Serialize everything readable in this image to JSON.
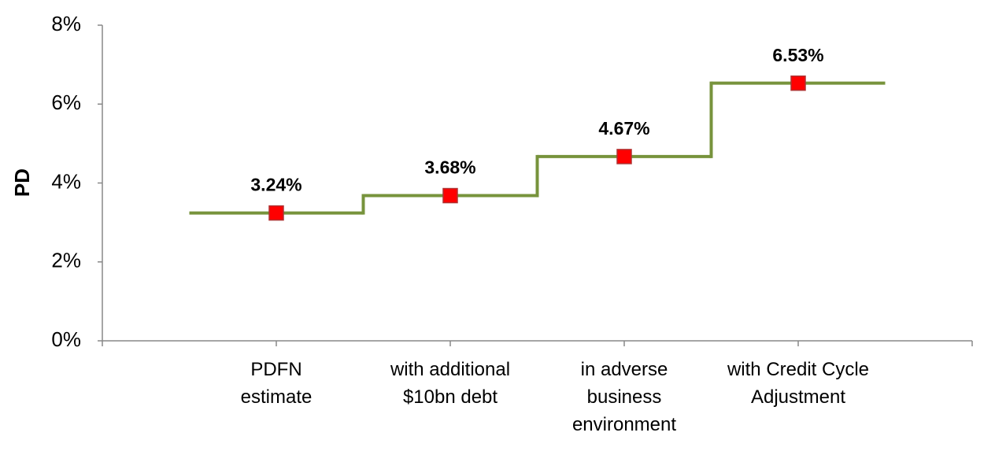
{
  "chart_data": {
    "type": "step",
    "y_label": "PD",
    "categories": [
      "PDFN estimate",
      "with additional $10bn debt",
      "in adverse business environment",
      "with Credit Cycle Adjustment"
    ],
    "values": [
      3.24,
      3.68,
      4.67,
      6.53
    ],
    "value_labels": [
      "3.24%",
      "3.68%",
      "4.67%",
      "6.53%"
    ],
    "color": "#77933c",
    "marker_color": "#ff0000",
    "ylim": [
      0,
      8
    ],
    "yticks": [
      {
        "value": 0,
        "label": "0%"
      },
      {
        "value": 2,
        "label": "2%"
      },
      {
        "value": 4,
        "label": "4%"
      },
      {
        "value": 6,
        "label": "6%"
      },
      {
        "value": 8,
        "label": "8%"
      }
    ],
    "grid": false
  }
}
